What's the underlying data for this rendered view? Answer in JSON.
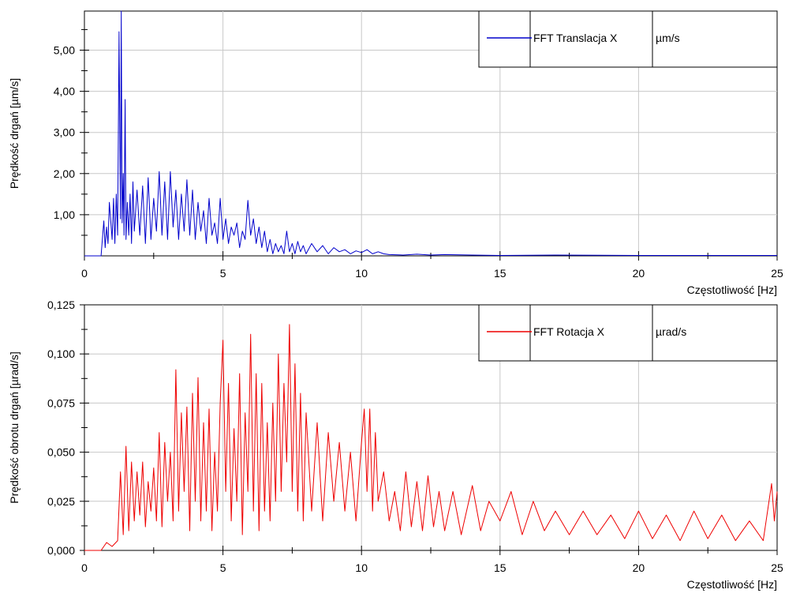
{
  "chart_data": [
    {
      "type": "line",
      "ylabel": "Prędkość drgań [µm/s]",
      "xlabel": "Częstotliwość [Hz]",
      "xlim": [
        0,
        25
      ],
      "ylim": [
        0,
        5.95
      ],
      "xticks": [
        0,
        5,
        10,
        15,
        20,
        25
      ],
      "yticks": [
        {
          "v": 1,
          "label": "1,00"
        },
        {
          "v": 2,
          "label": "2,00"
        },
        {
          "v": 3,
          "label": "3,00"
        },
        {
          "v": 4,
          "label": "4,00"
        },
        {
          "v": 5,
          "label": "5,00"
        }
      ],
      "grid": true,
      "legend_position": "top-right",
      "legend": {
        "name": "FFT Translacja X",
        "unit": "µm/s"
      },
      "series": [
        {
          "name": "FFT Translacja X",
          "color": "#0000cc",
          "x": [
            0,
            0.6,
            0.7,
            0.75,
            0.8,
            0.85,
            0.9,
            1.0,
            1.05,
            1.1,
            1.15,
            1.2,
            1.25,
            1.3,
            1.33,
            1.36,
            1.4,
            1.43,
            1.47,
            1.5,
            1.55,
            1.6,
            1.65,
            1.7,
            1.75,
            1.8,
            1.9,
            2.0,
            2.1,
            2.2,
            2.3,
            2.4,
            2.5,
            2.6,
            2.7,
            2.8,
            2.9,
            3.0,
            3.1,
            3.2,
            3.3,
            3.4,
            3.5,
            3.6,
            3.7,
            3.8,
            3.9,
            4.0,
            4.1,
            4.2,
            4.3,
            4.4,
            4.5,
            4.6,
            4.7,
            4.8,
            4.9,
            5.0,
            5.1,
            5.2,
            5.3,
            5.4,
            5.5,
            5.6,
            5.7,
            5.8,
            5.9,
            6.0,
            6.1,
            6.2,
            6.3,
            6.4,
            6.5,
            6.6,
            6.7,
            6.8,
            6.9,
            7.0,
            7.1,
            7.2,
            7.3,
            7.4,
            7.5,
            7.6,
            7.7,
            7.8,
            7.9,
            8.0,
            8.2,
            8.4,
            8.6,
            8.8,
            9.0,
            9.2,
            9.4,
            9.6,
            9.8,
            10.0,
            10.2,
            10.4,
            10.6,
            10.8,
            11.0,
            11.5,
            12.0,
            12.5,
            13.0,
            14.0,
            15.0,
            17.0,
            20.0,
            25.0
          ],
          "values": [
            0,
            0,
            0.85,
            0.2,
            0.7,
            0.3,
            1.3,
            0.4,
            1.4,
            0.3,
            1.5,
            0.5,
            5.45,
            0.9,
            5.95,
            0.8,
            2.0,
            0.5,
            3.8,
            0.4,
            1.3,
            0.5,
            1.5,
            0.3,
            1.8,
            0.6,
            1.6,
            0.5,
            1.7,
            0.3,
            1.9,
            0.4,
            1.4,
            0.6,
            2.05,
            0.5,
            1.8,
            0.4,
            2.05,
            0.7,
            1.6,
            0.4,
            1.5,
            0.6,
            1.85,
            0.5,
            1.6,
            0.4,
            1.3,
            0.6,
            1.1,
            0.3,
            1.4,
            0.5,
            0.8,
            0.3,
            1.4,
            0.4,
            0.9,
            0.3,
            0.7,
            0.5,
            0.8,
            0.2,
            0.6,
            0.4,
            1.35,
            0.5,
            0.9,
            0.3,
            0.7,
            0.2,
            0.6,
            0.1,
            0.4,
            0.05,
            0.3,
            0.1,
            0.25,
            0.05,
            0.6,
            0.1,
            0.3,
            0.05,
            0.35,
            0.1,
            0.25,
            0.05,
            0.3,
            0.1,
            0.25,
            0.05,
            0.2,
            0.1,
            0.15,
            0.05,
            0.12,
            0.08,
            0.15,
            0.05,
            0.1,
            0.05,
            0.03,
            0.02,
            0.04,
            0.02,
            0.03,
            0.02,
            0.01,
            0.02,
            0.01,
            0.01
          ]
        }
      ]
    },
    {
      "type": "line",
      "ylabel": "Prędkość obrotu drgań [µrad/s]",
      "xlabel": "Częstotliwość [Hz]",
      "xlim": [
        0,
        25
      ],
      "ylim": [
        0,
        0.125
      ],
      "xticks": [
        0,
        5,
        10,
        15,
        20,
        25
      ],
      "yticks": [
        {
          "v": 0,
          "label": "0,000"
        },
        {
          "v": 0.025,
          "label": "0,025"
        },
        {
          "v": 0.05,
          "label": "0,050"
        },
        {
          "v": 0.075,
          "label": "0,075"
        },
        {
          "v": 0.1,
          "label": "0,100"
        },
        {
          "v": 0.125,
          "label": "0,125"
        }
      ],
      "grid": true,
      "legend_position": "top-right",
      "legend": {
        "name": "FFT Rotacja X",
        "unit": "µrad/s"
      },
      "series": [
        {
          "name": "FFT Rotacja X",
          "color": "#ee0000",
          "x": [
            0,
            0.6,
            0.8,
            1.0,
            1.2,
            1.3,
            1.4,
            1.5,
            1.6,
            1.7,
            1.8,
            1.9,
            2.0,
            2.1,
            2.2,
            2.3,
            2.4,
            2.5,
            2.6,
            2.7,
            2.8,
            2.9,
            3.0,
            3.1,
            3.2,
            3.3,
            3.4,
            3.5,
            3.6,
            3.7,
            3.8,
            3.9,
            4.0,
            4.1,
            4.2,
            4.3,
            4.4,
            4.5,
            4.6,
            4.7,
            4.8,
            4.9,
            5.0,
            5.1,
            5.2,
            5.3,
            5.4,
            5.5,
            5.6,
            5.7,
            5.8,
            5.9,
            6.0,
            6.1,
            6.2,
            6.3,
            6.4,
            6.5,
            6.6,
            6.7,
            6.8,
            6.9,
            7.0,
            7.1,
            7.2,
            7.3,
            7.4,
            7.5,
            7.6,
            7.7,
            7.8,
            7.9,
            8.0,
            8.2,
            8.4,
            8.6,
            8.8,
            9.0,
            9.2,
            9.4,
            9.6,
            9.8,
            10.0,
            10.1,
            10.2,
            10.3,
            10.4,
            10.5,
            10.6,
            10.8,
            11.0,
            11.2,
            11.4,
            11.6,
            11.8,
            12.0,
            12.2,
            12.4,
            12.6,
            12.8,
            13.0,
            13.3,
            13.6,
            14.0,
            14.3,
            14.6,
            15.0,
            15.4,
            15.8,
            16.2,
            16.6,
            17.0,
            17.5,
            18.0,
            18.5,
            19.0,
            19.5,
            20.0,
            20.5,
            21.0,
            21.5,
            22.0,
            22.5,
            23.0,
            23.5,
            24.0,
            24.5,
            24.8,
            24.9,
            25.0
          ],
          "values": [
            0,
            0,
            0.004,
            0.002,
            0.005,
            0.04,
            0.008,
            0.053,
            0.01,
            0.045,
            0.015,
            0.04,
            0.018,
            0.045,
            0.012,
            0.035,
            0.02,
            0.042,
            0.015,
            0.06,
            0.012,
            0.055,
            0.025,
            0.05,
            0.015,
            0.092,
            0.02,
            0.07,
            0.03,
            0.073,
            0.01,
            0.08,
            0.025,
            0.088,
            0.015,
            0.065,
            0.02,
            0.072,
            0.01,
            0.05,
            0.02,
            0.075,
            0.107,
            0.03,
            0.085,
            0.015,
            0.062,
            0.025,
            0.09,
            0.008,
            0.07,
            0.03,
            0.11,
            0.02,
            0.09,
            0.01,
            0.085,
            0.02,
            0.065,
            0.015,
            0.075,
            0.025,
            0.1,
            0.03,
            0.085,
            0.045,
            0.115,
            0.03,
            0.095,
            0.02,
            0.08,
            0.015,
            0.07,
            0.02,
            0.065,
            0.015,
            0.06,
            0.025,
            0.055,
            0.02,
            0.05,
            0.015,
            0.055,
            0.072,
            0.03,
            0.072,
            0.02,
            0.06,
            0.025,
            0.04,
            0.015,
            0.03,
            0.01,
            0.04,
            0.012,
            0.035,
            0.01,
            0.038,
            0.012,
            0.03,
            0.01,
            0.03,
            0.008,
            0.033,
            0.01,
            0.025,
            0.015,
            0.03,
            0.008,
            0.025,
            0.01,
            0.02,
            0.008,
            0.02,
            0.008,
            0.018,
            0.006,
            0.02,
            0.006,
            0.018,
            0.005,
            0.02,
            0.006,
            0.018,
            0.005,
            0.015,
            0.005,
            0.034,
            0.015,
            0.03
          ]
        }
      ]
    }
  ]
}
